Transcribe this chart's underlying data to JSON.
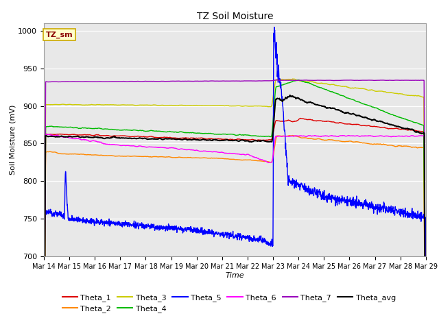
{
  "title": "TZ Soil Moisture",
  "xlabel": "Time",
  "ylabel": "Soil Moisture (mV)",
  "ylim": [
    700,
    1010
  ],
  "yticks": [
    700,
    750,
    800,
    850,
    900,
    950,
    1000
  ],
  "legend_label": "TZ_sm",
  "background_color": "#e8e8e8",
  "series_colors": {
    "Theta_1": "#dd0000",
    "Theta_2": "#ff8800",
    "Theta_3": "#cccc00",
    "Theta_4": "#00bb00",
    "Theta_5": "#0000ff",
    "Theta_6": "#ff00ff",
    "Theta_7": "#9900bb",
    "Theta_avg": "#000000"
  },
  "figsize": [
    6.4,
    4.8
  ],
  "dpi": 100
}
